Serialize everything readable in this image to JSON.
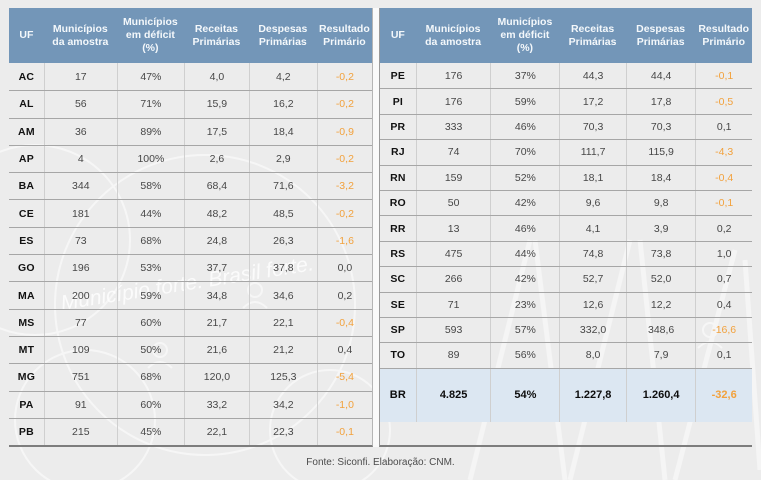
{
  "page": {
    "watermark_text": "Município forte. Brasil forte."
  },
  "colors": {
    "header_bg": "#7396B8",
    "header_text": "#F4F8FB",
    "total_row_bg": "#DCE7F2",
    "negative_value": "#F2A13C",
    "body_text": "#474747",
    "uf_text": "#121212",
    "page_bg": "#ECECEC",
    "row_border": "#A6A6A6",
    "col_border": "#CFCFCF"
  },
  "chart_data": {
    "type": "table",
    "columns": [
      "UF",
      "Municípios da amostra",
      "Municípios em déficit (%)",
      "Receitas Primárias",
      "Despesas Primárias",
      "Resultado Primário"
    ],
    "left_rows": [
      [
        "AC",
        "17",
        "47%",
        "4,0",
        "4,2",
        "-0,2"
      ],
      [
        "AL",
        "56",
        "71%",
        "15,9",
        "16,2",
        "-0,2"
      ],
      [
        "AM",
        "36",
        "89%",
        "17,5",
        "18,4",
        "-0,9"
      ],
      [
        "AP",
        "4",
        "100%",
        "2,6",
        "2,9",
        "-0,2"
      ],
      [
        "BA",
        "344",
        "58%",
        "68,4",
        "71,6",
        "-3,2"
      ],
      [
        "CE",
        "181",
        "44%",
        "48,2",
        "48,5",
        "-0,2"
      ],
      [
        "ES",
        "73",
        "68%",
        "24,8",
        "26,3",
        "-1,6"
      ],
      [
        "GO",
        "196",
        "53%",
        "37,7",
        "37,8",
        "0,0"
      ],
      [
        "MA",
        "200",
        "59%",
        "34,8",
        "34,6",
        "0,2"
      ],
      [
        "MS",
        "77",
        "60%",
        "21,7",
        "22,1",
        "-0,4"
      ],
      [
        "MT",
        "109",
        "50%",
        "21,6",
        "21,2",
        "0,4"
      ],
      [
        "MG",
        "751",
        "68%",
        "120,0",
        "125,3",
        "-5,4"
      ],
      [
        "PA",
        "91",
        "60%",
        "33,2",
        "34,2",
        "-1,0"
      ],
      [
        "PB",
        "215",
        "45%",
        "22,1",
        "22,3",
        "-0,1"
      ]
    ],
    "right_rows": [
      [
        "PE",
        "176",
        "37%",
        "44,3",
        "44,4",
        "-0,1"
      ],
      [
        "PI",
        "176",
        "59%",
        "17,2",
        "17,8",
        "-0,5"
      ],
      [
        "PR",
        "333",
        "46%",
        "70,3",
        "70,3",
        "0,1"
      ],
      [
        "RJ",
        "74",
        "70%",
        "111,7",
        "115,9",
        "-4,3"
      ],
      [
        "RN",
        "159",
        "52%",
        "18,1",
        "18,4",
        "-0,4"
      ],
      [
        "RO",
        "50",
        "42%",
        "9,6",
        "9,8",
        "-0,1"
      ],
      [
        "RR",
        "13",
        "46%",
        "4,1",
        "3,9",
        "0,2"
      ],
      [
        "RS",
        "475",
        "44%",
        "74,8",
        "73,8",
        "1,0"
      ],
      [
        "SC",
        "266",
        "42%",
        "52,7",
        "52,0",
        "0,7"
      ],
      [
        "SE",
        "71",
        "23%",
        "12,6",
        "12,2",
        "0,4"
      ],
      [
        "SP",
        "593",
        "57%",
        "332,0",
        "348,6",
        "-16,6"
      ],
      [
        "TO",
        "89",
        "56%",
        "8,0",
        "7,9",
        "0,1"
      ]
    ],
    "total_row": [
      "BR",
      "4.825",
      "54%",
      "1.227,8",
      "1.260,4",
      "-32,6"
    ],
    "source": "Fonte: Siconfi. Elaboração: CNM."
  }
}
